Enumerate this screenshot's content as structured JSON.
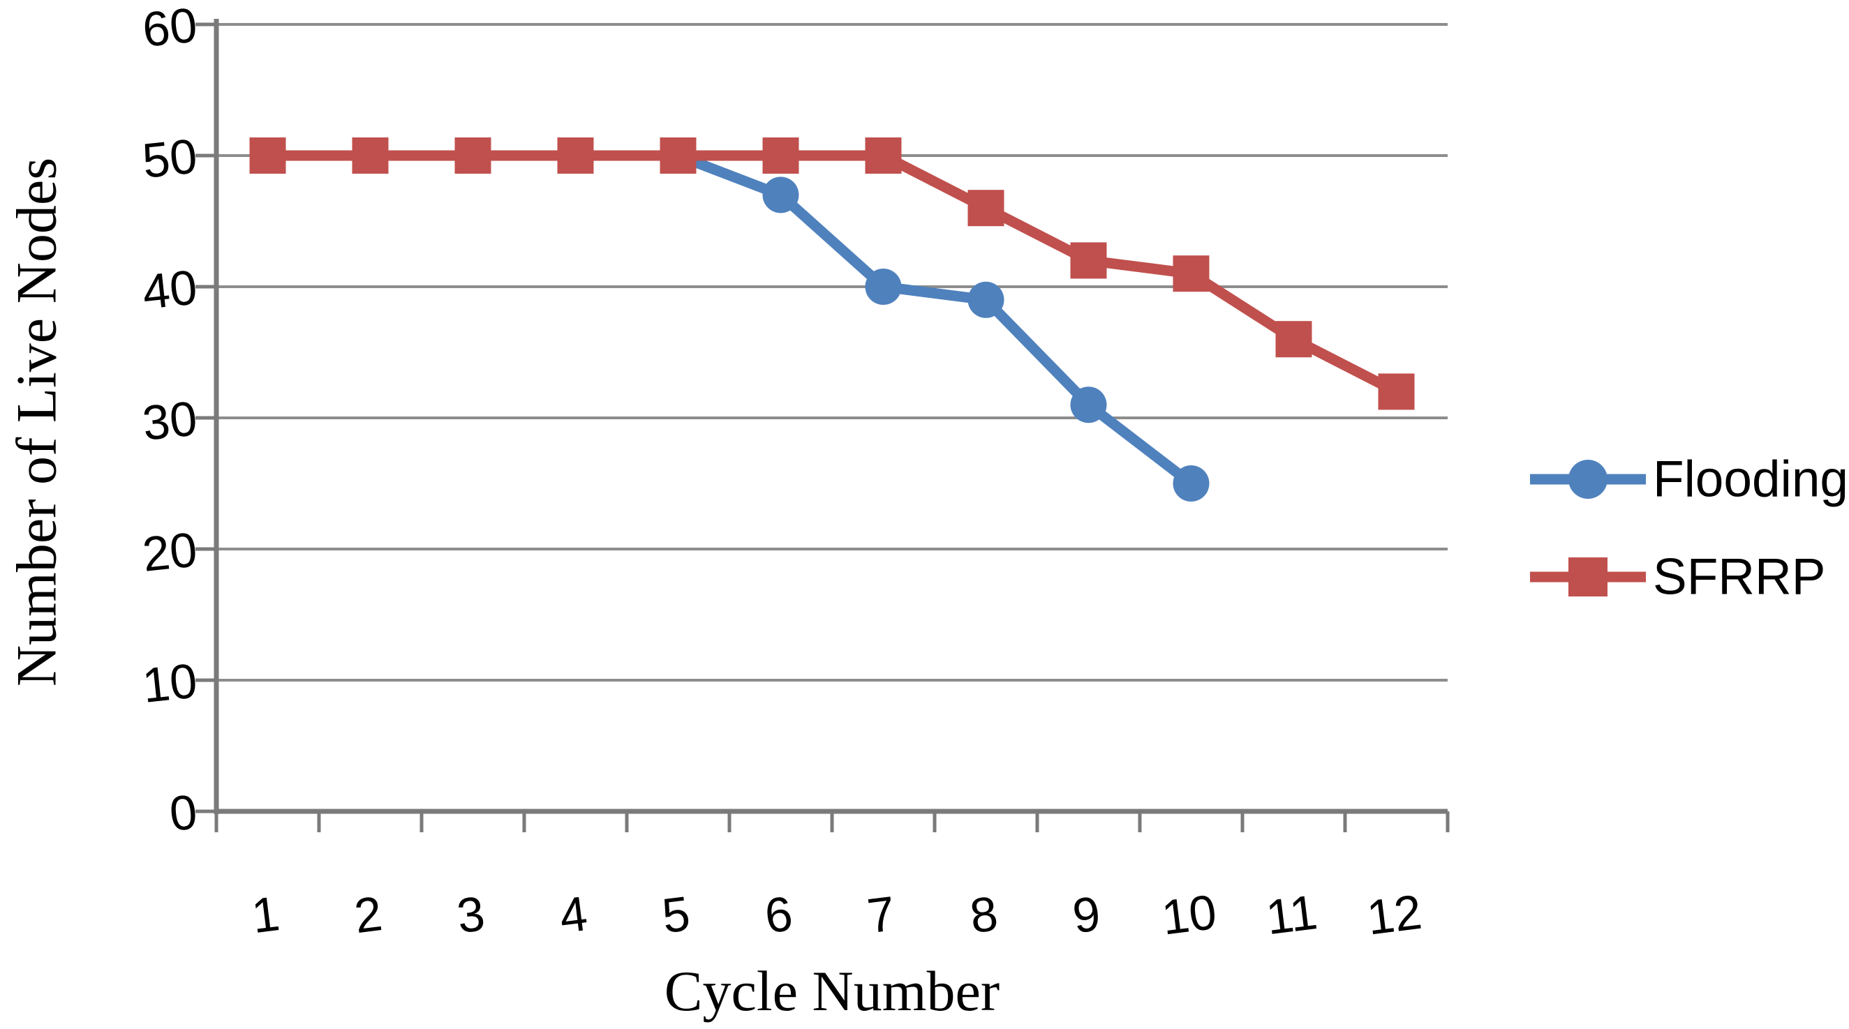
{
  "chart_data": {
    "type": "line",
    "title": "",
    "xlabel": "Cycle Number",
    "ylabel": "Number of Live Nodes",
    "x": [
      1,
      2,
      3,
      4,
      5,
      6,
      7,
      8,
      9,
      10,
      11,
      12
    ],
    "y_ticks": [
      0,
      10,
      20,
      30,
      40,
      50,
      60
    ],
    "ylim": [
      0,
      60
    ],
    "grid": "horizontal-gridlines-every-10",
    "legend_position": "right-middle",
    "series": [
      {
        "name": "Flooding",
        "color": "#4F81BD",
        "marker": "circle",
        "values": [
          50,
          50,
          50,
          50,
          50,
          47,
          40,
          39,
          31,
          25,
          null,
          null
        ]
      },
      {
        "name": "SFRRP",
        "color": "#C0504D",
        "marker": "square",
        "values": [
          50,
          50,
          50,
          50,
          50,
          50,
          50,
          46,
          42,
          41,
          36,
          32
        ]
      }
    ]
  },
  "colors": {
    "gridline": "#8D8D8D",
    "axis": "#7A7A7A",
    "text": "#000000",
    "background": "#FFFFFF"
  }
}
